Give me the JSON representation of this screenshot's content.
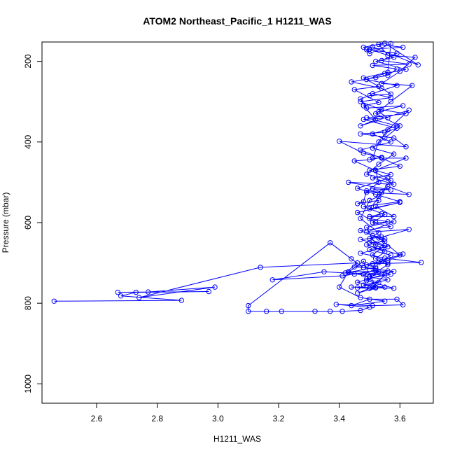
{
  "chart_data": {
    "type": "line",
    "title": "ATOM2 Northeast_Pacific_1 H1211_WAS",
    "xlabel": "H1211_WAS",
    "ylabel": "Pressure (mbar)",
    "xlim": [
      2.42,
      3.71
    ],
    "ylim": [
      1048,
      152
    ],
    "y_reversed": true,
    "x_ticks": [
      2.6,
      2.8,
      3.0,
      3.2,
      3.4,
      3.6
    ],
    "x_tick_labels": [
      "2.6",
      "2.8",
      "3.0",
      "3.2",
      "3.4",
      "3.6"
    ],
    "y_ticks": [
      200,
      400,
      600,
      800,
      1000
    ],
    "y_tick_labels": [
      "200",
      "400",
      "600",
      "800",
      "1000"
    ],
    "grid": false,
    "series_color": "#0000ff",
    "marker": "open-circle",
    "series": [
      {
        "values": [
          [
            2.46,
            795
          ],
          [
            2.88,
            793
          ],
          [
            2.68,
            782
          ],
          [
            2.73,
            773
          ],
          [
            2.97,
            771
          ],
          [
            2.67,
            773
          ],
          [
            2.77,
            772
          ],
          [
            2.99,
            760
          ],
          [
            2.74,
            786
          ],
          [
            3.14,
            711
          ],
          [
            3.46,
            700
          ],
          [
            3.42,
            725
          ],
          [
            3.52,
            711
          ],
          [
            3.49,
            705
          ],
          [
            3.53,
            699
          ],
          [
            3.56,
            695
          ],
          [
            3.61,
            678
          ],
          [
            3.51,
            702
          ],
          [
            3.67,
            699
          ],
          [
            3.55,
            688
          ],
          [
            3.47,
            676
          ],
          [
            3.54,
            663
          ],
          [
            3.5,
            650
          ],
          [
            3.55,
            647
          ],
          [
            3.51,
            632
          ],
          [
            3.55,
            640
          ],
          [
            3.52,
            655
          ],
          [
            3.49,
            612
          ],
          [
            3.56,
            598
          ],
          [
            3.5,
            590
          ],
          [
            3.54,
            578
          ],
          [
            3.5,
            585
          ],
          [
            3.58,
            585
          ],
          [
            3.52,
            560
          ],
          [
            3.53,
            545
          ],
          [
            3.46,
            553
          ],
          [
            3.48,
            548
          ],
          [
            3.49,
            521
          ],
          [
            3.54,
            525
          ],
          [
            3.51,
            516
          ],
          [
            3.57,
            519
          ],
          [
            3.43,
            500
          ],
          [
            3.58,
            505
          ],
          [
            3.51,
            489
          ],
          [
            3.57,
            481
          ],
          [
            3.52,
            471
          ],
          [
            3.45,
            447
          ],
          [
            3.5,
            444
          ],
          [
            3.54,
            438
          ],
          [
            3.48,
            428
          ],
          [
            3.4,
            398
          ],
          [
            3.62,
            412
          ],
          [
            3.58,
            390
          ],
          [
            3.47,
            380
          ],
          [
            3.55,
            376
          ],
          [
            3.59,
            366
          ],
          [
            3.48,
            344
          ],
          [
            3.56,
            340
          ],
          [
            3.53,
            325
          ],
          [
            3.61,
            310
          ],
          [
            3.49,
            316
          ],
          [
            3.47,
            293
          ],
          [
            3.5,
            285
          ],
          [
            3.57,
            281
          ],
          [
            3.54,
            267
          ],
          [
            3.44,
            251
          ],
          [
            3.52,
            240
          ],
          [
            3.56,
            235
          ],
          [
            3.59,
            219
          ],
          [
            3.51,
            210
          ],
          [
            3.63,
            207
          ],
          [
            3.54,
            198
          ],
          [
            3.59,
            180
          ],
          [
            3.49,
            171
          ],
          [
            3.51,
            164
          ],
          [
            3.66,
            209
          ],
          [
            3.55,
            155
          ],
          [
            3.48,
            165
          ],
          [
            3.5,
            181
          ],
          [
            3.57,
            156
          ],
          [
            3.56,
            227
          ],
          [
            3.48,
            241
          ],
          [
            3.53,
            262
          ],
          [
            3.45,
            270
          ],
          [
            3.53,
            302
          ],
          [
            3.48,
            310
          ],
          [
            3.52,
            345
          ],
          [
            3.47,
            360
          ],
          [
            3.63,
            321
          ],
          [
            3.56,
            370
          ],
          [
            3.53,
            400
          ],
          [
            3.51,
            440
          ],
          [
            3.62,
            440
          ],
          [
            3.52,
            470
          ],
          [
            3.53,
            500
          ],
          [
            3.49,
            525
          ],
          [
            3.63,
            530
          ],
          [
            3.56,
            510
          ],
          [
            3.5,
            566
          ],
          [
            3.6,
            550
          ],
          [
            3.46,
            575
          ],
          [
            3.52,
            600
          ],
          [
            3.58,
            598
          ],
          [
            3.49,
            624
          ],
          [
            3.63,
            617
          ],
          [
            3.54,
            636
          ],
          [
            3.47,
            642
          ],
          [
            3.56,
            660
          ],
          [
            3.5,
            667
          ],
          [
            3.57,
            681
          ],
          [
            3.54,
            696
          ],
          [
            3.45,
            710
          ],
          [
            3.52,
            714
          ],
          [
            3.48,
            729
          ],
          [
            3.56,
            720
          ],
          [
            3.5,
            735
          ],
          [
            3.56,
            742
          ],
          [
            3.48,
            755
          ],
          [
            3.55,
            760
          ],
          [
            3.5,
            763
          ],
          [
            3.46,
            762
          ],
          [
            3.53,
            748
          ],
          [
            3.49,
            740
          ],
          [
            3.57,
            728
          ],
          [
            3.52,
            719
          ],
          [
            3.45,
            728
          ],
          [
            3.41,
            732
          ],
          [
            3.18,
            742
          ],
          [
            3.35,
            722
          ],
          [
            3.55,
            730
          ],
          [
            3.51,
            760
          ],
          [
            3.46,
            775
          ],
          [
            3.52,
            762
          ],
          [
            3.44,
            760
          ],
          [
            3.58,
            763
          ],
          [
            3.49,
            744
          ],
          [
            3.53,
            721
          ],
          [
            3.43,
            722
          ],
          [
            3.4,
            760
          ],
          [
            3.47,
            786
          ],
          [
            3.55,
            795
          ],
          [
            3.44,
            806
          ],
          [
            3.5,
            790
          ],
          [
            3.59,
            790
          ],
          [
            3.61,
            804
          ],
          [
            3.51,
            806
          ],
          [
            3.39,
            803
          ],
          [
            3.5,
            810
          ],
          [
            3.47,
            818
          ],
          [
            3.41,
            820
          ],
          [
            3.37,
            820
          ],
          [
            3.32,
            820
          ],
          [
            3.21,
            820
          ],
          [
            3.16,
            820
          ],
          [
            3.1,
            820
          ],
          [
            3.1,
            806
          ],
          [
            3.37,
            650
          ],
          [
            3.44,
            690
          ],
          [
            3.48,
            712
          ],
          [
            3.58,
            721
          ],
          [
            3.46,
            748
          ],
          [
            3.52,
            760
          ],
          [
            3.48,
            696
          ],
          [
            3.43,
            723
          ],
          [
            3.5,
            734
          ],
          [
            3.56,
            704
          ],
          [
            3.52,
            690
          ],
          [
            3.55,
            672
          ],
          [
            3.49,
            655
          ],
          [
            3.6,
            680
          ],
          [
            3.53,
            638
          ],
          [
            3.47,
            620
          ],
          [
            3.57,
            610
          ],
          [
            3.51,
            600
          ],
          [
            3.55,
            580
          ],
          [
            3.48,
            560
          ],
          [
            3.6,
            548
          ],
          [
            3.52,
            530
          ],
          [
            3.46,
            515
          ],
          [
            3.56,
            490
          ],
          [
            3.5,
            470
          ],
          [
            3.6,
            460
          ],
          [
            3.54,
            440
          ],
          [
            3.47,
            420
          ],
          [
            3.57,
            400
          ],
          [
            3.51,
            380
          ],
          [
            3.59,
            360
          ],
          [
            3.49,
            340
          ],
          [
            3.62,
            330
          ],
          [
            3.54,
            320
          ],
          [
            3.47,
            300
          ],
          [
            3.57,
            290
          ],
          [
            3.51,
            280
          ],
          [
            3.59,
            260
          ],
          [
            3.49,
            245
          ],
          [
            3.55,
            230
          ],
          [
            3.62,
            220
          ],
          [
            3.52,
            200
          ],
          [
            3.58,
            190
          ],
          [
            3.5,
            170
          ],
          [
            3.61,
            165
          ],
          [
            3.53,
            158
          ],
          [
            3.56,
            185
          ],
          [
            3.65,
            190
          ],
          [
            3.6,
            225
          ],
          [
            3.54,
            255
          ],
          [
            3.64,
            260
          ],
          [
            3.57,
            300
          ],
          [
            3.52,
            330
          ],
          [
            3.6,
            360
          ],
          [
            3.55,
            390
          ],
          [
            3.51,
            415
          ],
          [
            3.58,
            430
          ],
          [
            3.53,
            455
          ],
          [
            3.49,
            480
          ],
          [
            3.57,
            495
          ],
          [
            3.53,
            535
          ],
          [
            3.5,
            545
          ],
          [
            3.47,
            590
          ],
          [
            3.53,
            625
          ],
          [
            3.5,
            640
          ],
          [
            3.55,
            657
          ],
          [
            3.51,
            680
          ],
          [
            3.56,
            700
          ]
        ]
      }
    ]
  }
}
